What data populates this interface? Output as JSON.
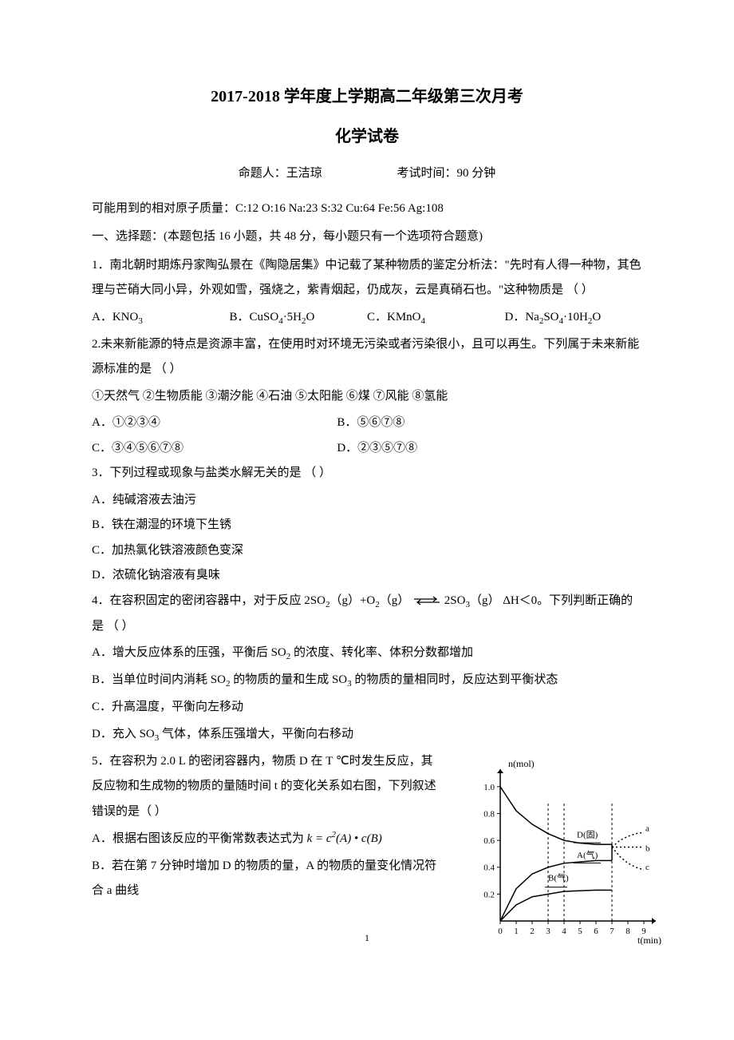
{
  "header": {
    "title_line1": "2017-2018 学年度上学期高二年级第三次月考",
    "title_line2": "化学试卷",
    "author_label": "命题人：王洁琼",
    "time_label": "考试时间：90 分钟"
  },
  "atomic_masses": "可能用到的相对原子质量：C:12  O:16  Na:23  S:32  Cu:64  Fe:56  Ag:108",
  "section1": "一、选择题：(本题包括 16 小题，共 48 分，每小题只有一个选项符合题意)",
  "q1": {
    "stem": "1．南北朝时期炼丹家陶弘景在《陶隐居集》中记载了某种物质的鉴定分析法：\"先时有人得一种物，其色理与芒硝大同小异，外观如雪，强烧之，紫青烟起，仍成灰，云是真硝石也。\"这种物质是 （    ）",
    "A": "A．KNO₃",
    "B": "B．CuSO₄·5H₂O",
    "C": "C．KMnO₄",
    "D": "D．Na₂SO₄·10H₂O"
  },
  "q2": {
    "stem": "2.未来新能源的特点是资源丰富，在使用时对环境无污染或者污染很小，且可以再生。下列属于未来新能源标准的是 （    ）",
    "items": "①天然气 ②生物质能 ③潮汐能 ④石油 ⑤太阳能 ⑥煤 ⑦风能 ⑧氢能",
    "A": "A．①②③④",
    "B": "B．⑤⑥⑦⑧",
    "C": "C．③④⑤⑥⑦⑧",
    "D": "D．②③⑤⑦⑧"
  },
  "q3": {
    "stem": "3．下列过程或现象与盐类水解无关的是 （    ）",
    "A": "A．纯碱溶液去油污",
    "B": "B．铁在潮湿的环境下生锈",
    "C": "C．加热氯化铁溶液颜色变深",
    "D": "D．浓硫化钠溶液有臭味"
  },
  "q4": {
    "stem_prefix": "4．在容积固定的密闭容器中，对于反应 2SO₂（g）+O₂（g）",
    "stem_suffix": "2SO₃（g） ΔH＜0。下列判断正确的是   （    ）",
    "A": "A．增大反应体系的压强，平衡后 SO₂ 的浓度、转化率、体积分数都增加",
    "B": "B．当单位时间内消耗 SO₂ 的物质的量和生成 SO₃ 的物质的量相同时，反应达到平衡状态",
    "C": "C．升高温度，平衡向左移动",
    "D": "D．充入 SO₃ 气体，体系压强增大，平衡向右移动"
  },
  "q5": {
    "stem": "5．在容积为 2.0 L 的密闭容器内，物质 D 在 T ℃时发生反应，其反应物和生成物的物质的量随时间 t 的变化关系如右图，下列叙述错误的是（    ）",
    "A_prefix": "A．根据右图该反应的平衡常数表达式为",
    "A_formula": "k = c²(A) • c(B)",
    "B": "B．若在第 7 分钟时增加 D 的物质的量，A 的物质的量变化情况符合 a 曲线"
  },
  "chart": {
    "type": "line",
    "ylabel": "n(mol)",
    "xlabel": "t(min)",
    "x_ticks": [
      0,
      1,
      2,
      3,
      4,
      5,
      6,
      7,
      8,
      9
    ],
    "y_ticks": [
      0.2,
      0.4,
      0.6,
      0.8,
      1.0
    ],
    "xlim": [
      0,
      9.5
    ],
    "ylim": [
      0,
      1.1
    ],
    "line_color": "#000000",
    "line_width": 1.5,
    "dash_color": "#000000",
    "background_color": "#ffffff",
    "label_fontsize": 12,
    "tick_fontsize": 11,
    "series": {
      "D": {
        "label": "D(固)",
        "label_pos": [
          4.8,
          0.62
        ],
        "points": [
          [
            0,
            1.0
          ],
          [
            1,
            0.82
          ],
          [
            2,
            0.72
          ],
          [
            3,
            0.65
          ],
          [
            4,
            0.6
          ],
          [
            5,
            0.58
          ],
          [
            6,
            0.57
          ],
          [
            7,
            0.57
          ]
        ],
        "style": "solid"
      },
      "A": {
        "label": "A(气)",
        "label_pos": [
          4.8,
          0.47
        ],
        "points": [
          [
            0,
            0
          ],
          [
            1,
            0.24
          ],
          [
            2,
            0.35
          ],
          [
            3,
            0.4
          ],
          [
            4,
            0.43
          ],
          [
            5,
            0.44
          ],
          [
            6,
            0.45
          ],
          [
            7,
            0.45
          ]
        ],
        "style": "solid"
      },
      "B": {
        "label": "B(气)",
        "label_pos": [
          3.0,
          0.3
        ],
        "points": [
          [
            0,
            0
          ],
          [
            1,
            0.12
          ],
          [
            2,
            0.18
          ],
          [
            3,
            0.2
          ],
          [
            4,
            0.22
          ],
          [
            5,
            0.225
          ],
          [
            6,
            0.23
          ],
          [
            7,
            0.23
          ]
        ],
        "style": "solid"
      },
      "a": {
        "label": "a",
        "label_pos": [
          9.1,
          0.67
        ],
        "points": [
          [
            7,
            0.55
          ],
          [
            7.5,
            0.6
          ],
          [
            8,
            0.63
          ],
          [
            8.5,
            0.65
          ],
          [
            9,
            0.66
          ]
        ],
        "style": "dotted"
      },
      "b": {
        "label": "b",
        "label_pos": [
          9.1,
          0.52
        ],
        "points": [
          [
            7,
            0.55
          ],
          [
            9,
            0.55
          ]
        ],
        "style": "dotted"
      },
      "c": {
        "label": "c",
        "label_pos": [
          9.1,
          0.38
        ],
        "points": [
          [
            7,
            0.55
          ],
          [
            7.5,
            0.48
          ],
          [
            8,
            0.43
          ],
          [
            8.5,
            0.4
          ],
          [
            9,
            0.38
          ]
        ],
        "style": "dotted"
      }
    }
  },
  "page_num": "1"
}
